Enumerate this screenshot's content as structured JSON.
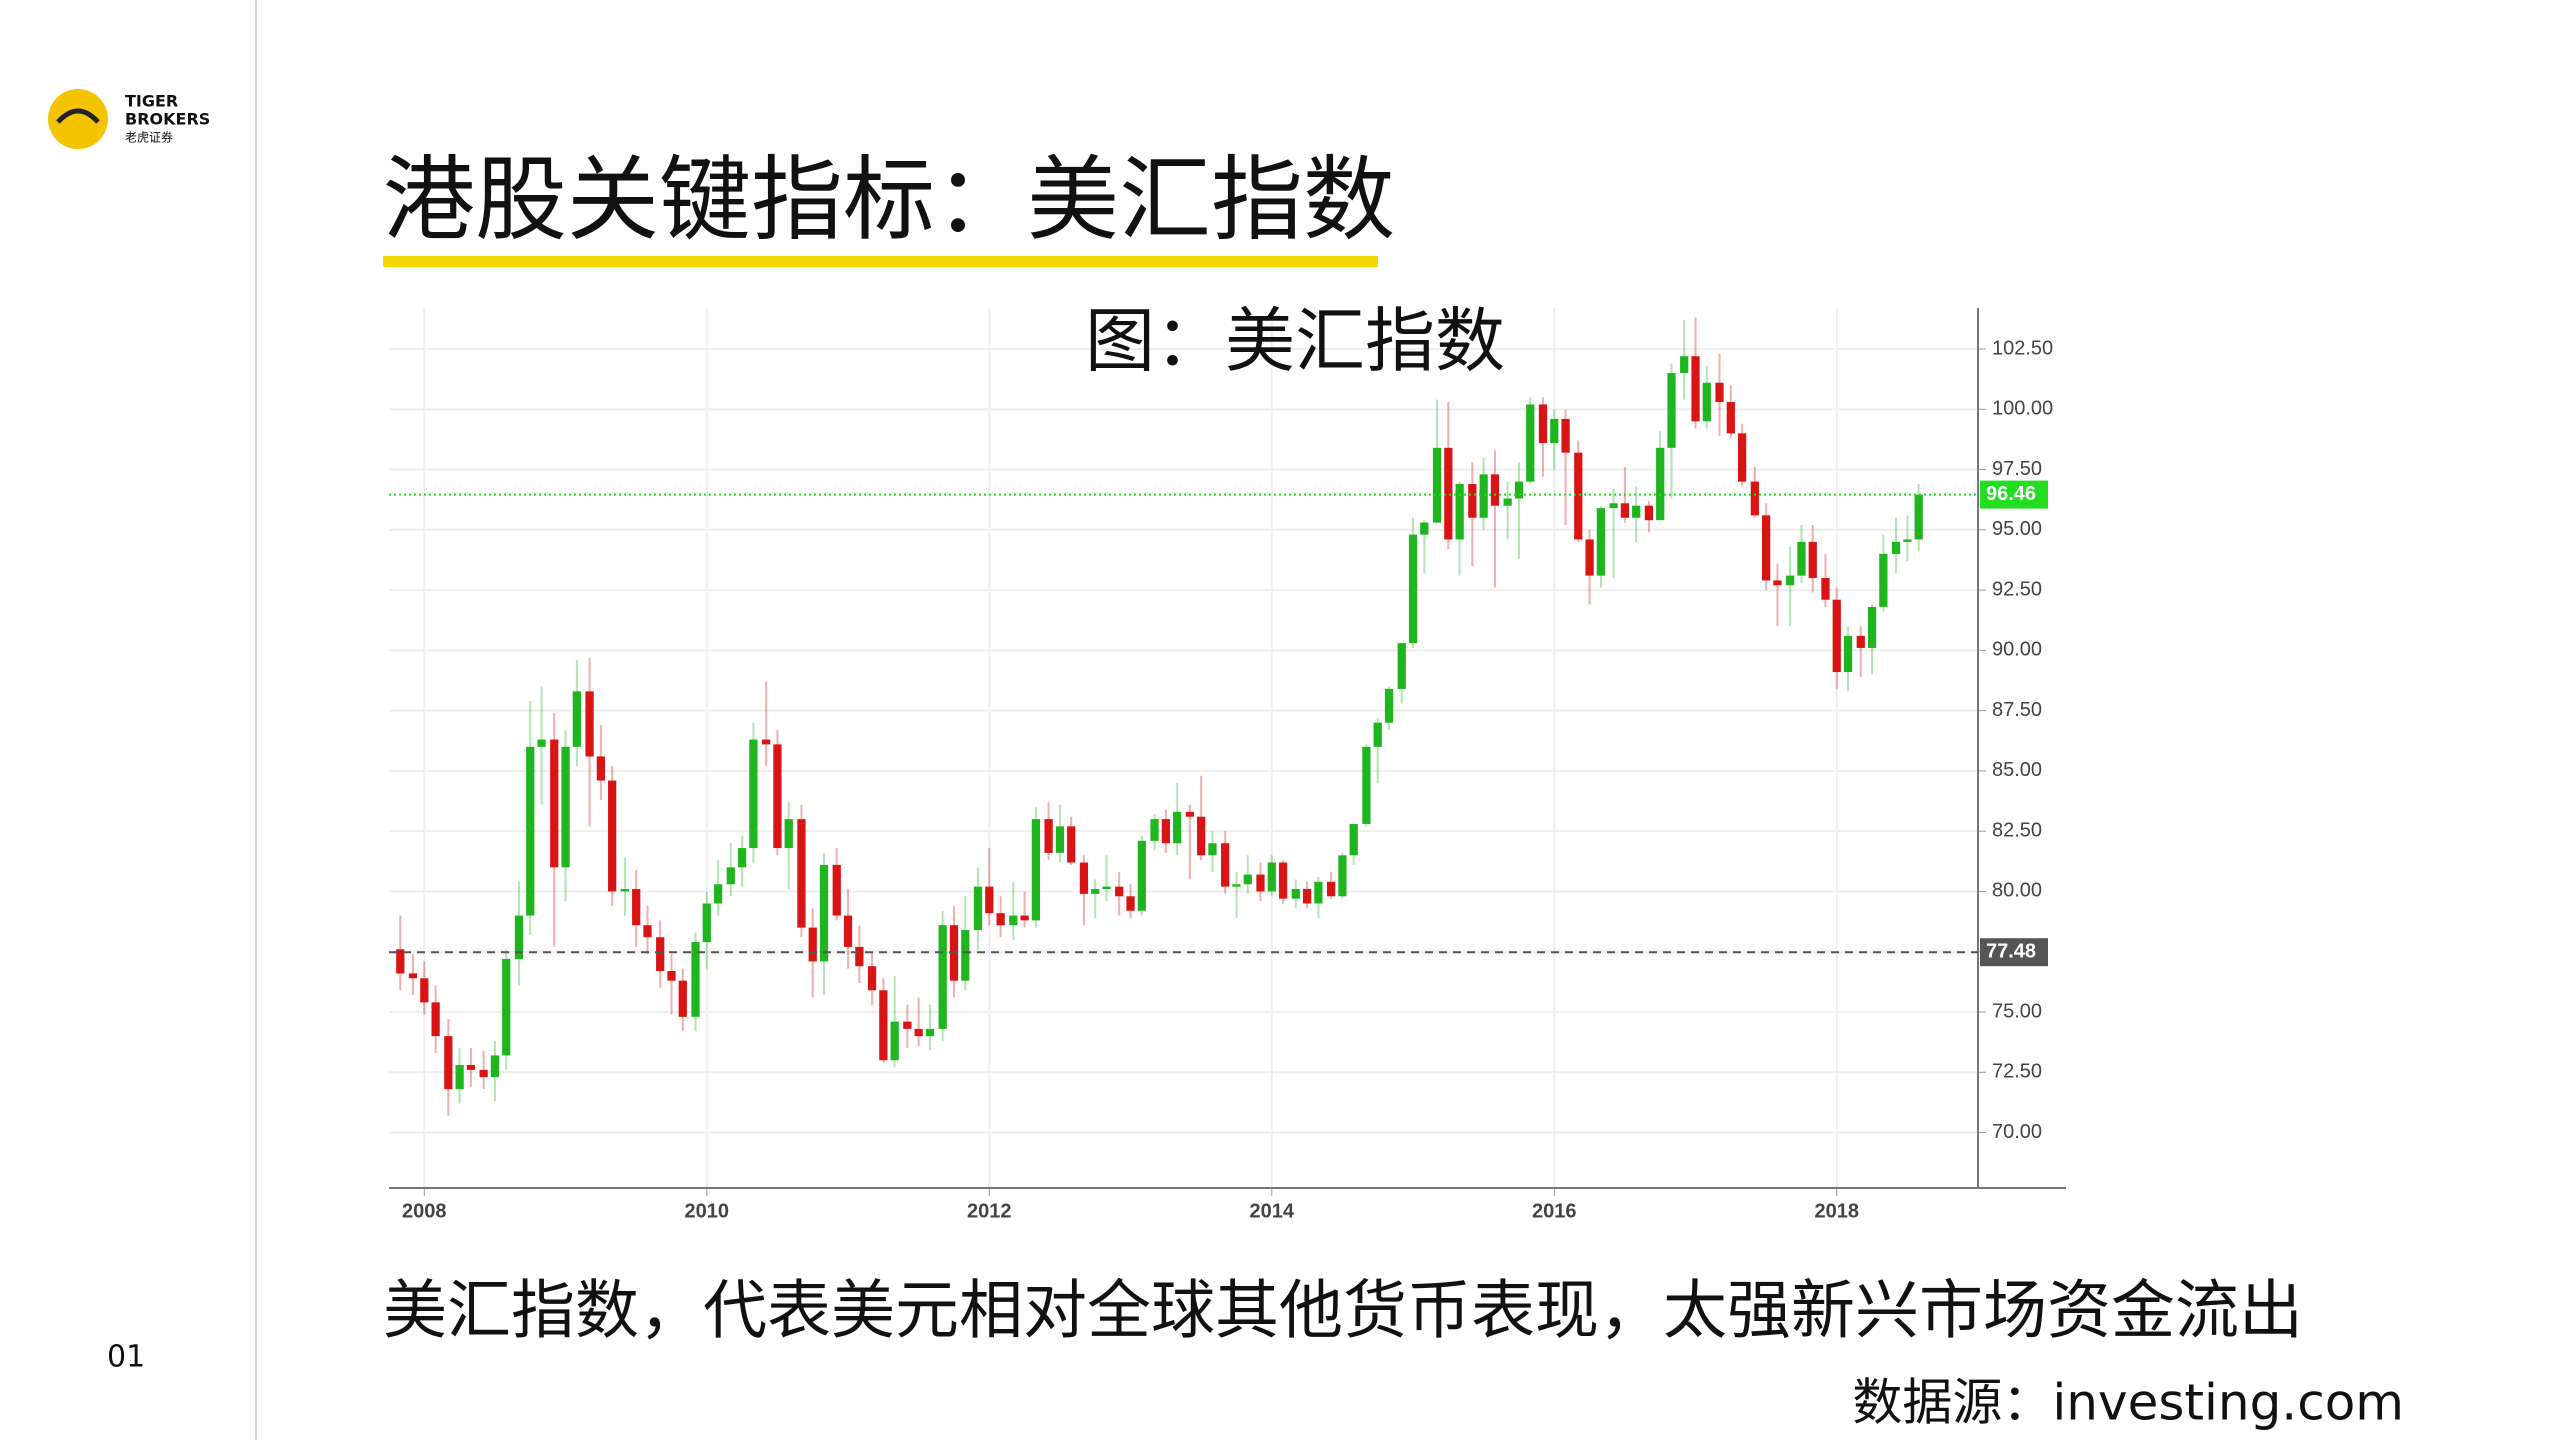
{
  "slide": {
    "logo": [
      "TIGER",
      "BROKERS",
      "老虎证券"
    ],
    "title": "港股关键指标：美汇指数",
    "caption": "美汇指数，代表美元相对全球其他货币表现，太强新兴市场资金流出",
    "source": "数据源：investing.com",
    "page": "01"
  },
  "chart_data": {
    "type": "candlestick",
    "title": "图：美汇指数",
    "up_color": "#1fb51f",
    "down_color": "#d91414",
    "grid": true,
    "xlim": [
      2007.75,
      2019.0
    ],
    "xticks": [
      2008,
      2010,
      2012,
      2014,
      2016,
      2018
    ],
    "ylim": [
      67.7,
      104.2
    ],
    "yticks": [
      {
        "value": 70,
        "label": "70.00"
      },
      {
        "value": 72.5,
        "label": "72.50"
      },
      {
        "value": 75,
        "label": "75.00"
      },
      {
        "value": 77.5,
        "label": "77.50"
      },
      {
        "value": 80,
        "label": "80.00"
      },
      {
        "value": 82.5,
        "label": "82.50"
      },
      {
        "value": 85,
        "label": "85.00"
      },
      {
        "value": 87.5,
        "label": "87.50"
      },
      {
        "value": 90,
        "label": "90.00"
      },
      {
        "value": 92.5,
        "label": "92.50"
      },
      {
        "value": 95,
        "label": "95.00"
      },
      {
        "value": 97.5,
        "label": "97.50"
      },
      {
        "value": 100,
        "label": "100.00"
      },
      {
        "value": 102.5,
        "label": "102.50"
      }
    ],
    "price_lines": [
      {
        "value": 96.46,
        "color": "#22dd22",
        "style": "dotted"
      },
      {
        "value": 77.48,
        "color": "#555555",
        "style": "dashed"
      }
    ],
    "x": [
      2007.83,
      2007.92,
      2008.0,
      2008.08,
      2008.17,
      2008.25,
      2008.33,
      2008.42,
      2008.5,
      2008.58,
      2008.67,
      2008.75,
      2008.83,
      2008.92,
      2009.0,
      2009.08,
      2009.17,
      2009.25,
      2009.33,
      2009.42,
      2009.5,
      2009.58,
      2009.67,
      2009.75,
      2009.83,
      2009.92,
      2010.0,
      2010.08,
      2010.17,
      2010.25,
      2010.33,
      2010.42,
      2010.5,
      2010.58,
      2010.67,
      2010.75,
      2010.83,
      2010.92,
      2011.0,
      2011.08,
      2011.17,
      2011.25,
      2011.33,
      2011.42,
      2011.5,
      2011.58,
      2011.67,
      2011.75,
      2011.83,
      2011.92,
      2012.0,
      2012.08,
      2012.17,
      2012.25,
      2012.33,
      2012.42,
      2012.5,
      2012.58,
      2012.67,
      2012.75,
      2012.83,
      2012.92,
      2013.0,
      2013.08,
      2013.17,
      2013.25,
      2013.33,
      2013.42,
      2013.5,
      2013.58,
      2013.67,
      2013.75,
      2013.83,
      2013.92,
      2014.0,
      2014.08,
      2014.17,
      2014.25,
      2014.33,
      2014.42,
      2014.5,
      2014.58,
      2014.67,
      2014.75,
      2014.83,
      2014.92,
      2015.0,
      2015.08,
      2015.17,
      2015.25,
      2015.33,
      2015.42,
      2015.5,
      2015.58,
      2015.67,
      2015.75,
      2015.83,
      2015.92,
      2016.0,
      2016.08,
      2016.17,
      2016.25,
      2016.33,
      2016.42,
      2016.5,
      2016.58,
      2016.67,
      2016.75,
      2016.83,
      2016.92,
      2017.0,
      2017.08,
      2017.17,
      2017.25,
      2017.33,
      2017.42,
      2017.5,
      2017.58,
      2017.67,
      2017.75,
      2017.83,
      2017.92,
      2018.0,
      2018.08,
      2018.17,
      2018.25,
      2018.33,
      2018.42,
      2018.5,
      2018.58
    ],
    "ohlc": [
      [
        77.6,
        79.0,
        75.9,
        76.6
      ],
      [
        76.6,
        77.4,
        75.7,
        76.4
      ],
      [
        76.4,
        77.1,
        74.9,
        75.4
      ],
      [
        75.4,
        76.1,
        73.3,
        74.0
      ],
      [
        74.0,
        74.7,
        70.7,
        71.8
      ],
      [
        71.8,
        73.5,
        71.2,
        72.8
      ],
      [
        72.8,
        73.5,
        71.9,
        72.6
      ],
      [
        72.6,
        73.4,
        71.8,
        72.3
      ],
      [
        72.3,
        73.8,
        71.3,
        73.2
      ],
      [
        73.2,
        77.6,
        72.6,
        77.2
      ],
      [
        77.2,
        80.4,
        76.1,
        79.0
      ],
      [
        79.0,
        87.9,
        78.2,
        86.0
      ],
      [
        86.0,
        88.5,
        83.6,
        86.3
      ],
      [
        86.3,
        87.4,
        77.7,
        81.0
      ],
      [
        81.0,
        86.7,
        79.6,
        86.0
      ],
      [
        86.0,
        89.6,
        85.2,
        88.3
      ],
      [
        88.3,
        89.7,
        82.7,
        85.6
      ],
      [
        85.6,
        86.9,
        83.8,
        84.6
      ],
      [
        84.6,
        85.2,
        79.4,
        80.0
      ],
      [
        80.0,
        81.4,
        79.0,
        80.1
      ],
      [
        80.1,
        80.9,
        77.7,
        78.6
      ],
      [
        78.6,
        79.4,
        77.4,
        78.1
      ],
      [
        78.1,
        78.8,
        76.0,
        76.7
      ],
      [
        76.7,
        77.4,
        74.9,
        76.3
      ],
      [
        76.3,
        76.8,
        74.2,
        74.8
      ],
      [
        74.8,
        78.3,
        74.2,
        77.9
      ],
      [
        77.9,
        80.0,
        76.8,
        79.5
      ],
      [
        79.5,
        81.3,
        79.0,
        80.3
      ],
      [
        80.3,
        82.0,
        79.8,
        81.0
      ],
      [
        81.0,
        82.3,
        80.2,
        81.8
      ],
      [
        81.8,
        87.0,
        81.2,
        86.3
      ],
      [
        86.3,
        88.7,
        85.2,
        86.1
      ],
      [
        86.1,
        86.7,
        81.5,
        81.8
      ],
      [
        81.8,
        83.7,
        80.1,
        83.0
      ],
      [
        83.0,
        83.6,
        78.1,
        78.5
      ],
      [
        78.5,
        79.3,
        75.6,
        77.1
      ],
      [
        77.1,
        81.6,
        75.7,
        81.1
      ],
      [
        81.1,
        81.8,
        78.8,
        79.0
      ],
      [
        79.0,
        80.1,
        76.8,
        77.7
      ],
      [
        77.7,
        78.6,
        76.2,
        76.9
      ],
      [
        76.9,
        77.5,
        75.3,
        75.9
      ],
      [
        75.9,
        76.4,
        72.9,
        73.0
      ],
      [
        73.0,
        76.5,
        72.7,
        74.6
      ],
      [
        74.6,
        75.3,
        73.5,
        74.3
      ],
      [
        74.3,
        75.6,
        73.6,
        74.0
      ],
      [
        74.0,
        75.3,
        73.4,
        74.3
      ],
      [
        74.3,
        79.2,
        73.8,
        78.6
      ],
      [
        78.6,
        79.4,
        75.6,
        76.3
      ],
      [
        76.3,
        79.8,
        75.9,
        78.4
      ],
      [
        78.4,
        81.0,
        77.6,
        80.2
      ],
      [
        80.2,
        81.8,
        78.6,
        79.1
      ],
      [
        79.1,
        79.8,
        78.1,
        78.6
      ],
      [
        78.6,
        80.4,
        78.0,
        79.0
      ],
      [
        79.0,
        80.0,
        78.5,
        78.8
      ],
      [
        78.8,
        83.5,
        78.5,
        83.0
      ],
      [
        83.0,
        83.7,
        81.3,
        81.6
      ],
      [
        81.6,
        83.6,
        81.2,
        82.7
      ],
      [
        82.7,
        83.1,
        81.1,
        81.2
      ],
      [
        81.2,
        81.5,
        78.6,
        79.9
      ],
      [
        79.9,
        80.5,
        78.9,
        80.1
      ],
      [
        80.1,
        81.5,
        79.6,
        80.2
      ],
      [
        80.2,
        80.8,
        79.0,
        79.8
      ],
      [
        79.8,
        80.3,
        78.9,
        79.2
      ],
      [
        79.2,
        82.3,
        79.0,
        82.1
      ],
      [
        82.1,
        83.2,
        81.7,
        83.0
      ],
      [
        83.0,
        83.4,
        81.6,
        82.0
      ],
      [
        82.0,
        84.5,
        81.5,
        83.3
      ],
      [
        83.3,
        83.6,
        80.5,
        83.1
      ],
      [
        83.1,
        84.8,
        81.3,
        81.5
      ],
      [
        81.5,
        82.5,
        80.8,
        82.0
      ],
      [
        82.0,
        82.5,
        79.9,
        80.2
      ],
      [
        80.2,
        80.8,
        78.9,
        80.3
      ],
      [
        80.3,
        81.5,
        79.9,
        80.7
      ],
      [
        80.7,
        81.2,
        79.6,
        80.0
      ],
      [
        80.0,
        81.5,
        79.8,
        81.2
      ],
      [
        81.2,
        81.3,
        79.5,
        79.7
      ],
      [
        79.7,
        80.5,
        79.3,
        80.1
      ],
      [
        80.1,
        80.4,
        79.3,
        79.5
      ],
      [
        79.5,
        80.6,
        78.9,
        80.4
      ],
      [
        80.4,
        80.8,
        79.7,
        79.8
      ],
      [
        79.8,
        81.6,
        79.7,
        81.5
      ],
      [
        81.5,
        82.8,
        81.1,
        82.8
      ],
      [
        82.8,
        86.1,
        82.7,
        86.0
      ],
      [
        86.0,
        87.2,
        84.5,
        87.0
      ],
      [
        87.0,
        88.5,
        86.7,
        88.4
      ],
      [
        88.4,
        90.3,
        87.8,
        90.3
      ],
      [
        90.3,
        95.5,
        90.1,
        94.8
      ],
      [
        94.8,
        95.4,
        93.2,
        95.3
      ],
      [
        95.3,
        100.4,
        95.3,
        98.4
      ],
      [
        98.4,
        100.3,
        94.2,
        94.6
      ],
      [
        94.6,
        97.0,
        93.1,
        96.9
      ],
      [
        96.9,
        97.8,
        93.5,
        95.5
      ],
      [
        95.5,
        98.0,
        95.0,
        97.3
      ],
      [
        97.3,
        98.3,
        92.6,
        96.0
      ],
      [
        96.0,
        97.0,
        94.6,
        96.3
      ],
      [
        96.3,
        97.8,
        93.8,
        97.0
      ],
      [
        97.0,
        100.5,
        96.9,
        100.2
      ],
      [
        100.2,
        100.5,
        97.2,
        98.6
      ],
      [
        98.6,
        100.0,
        97.5,
        99.6
      ],
      [
        99.6,
        100.0,
        95.2,
        98.2
      ],
      [
        98.2,
        98.7,
        94.5,
        94.6
      ],
      [
        94.6,
        95.0,
        91.9,
        93.1
      ],
      [
        93.1,
        96.0,
        92.6,
        95.9
      ],
      [
        95.9,
        96.7,
        93.0,
        96.1
      ],
      [
        96.1,
        97.6,
        95.3,
        95.5
      ],
      [
        95.5,
        96.8,
        94.5,
        96.0
      ],
      [
        96.0,
        96.2,
        94.9,
        95.4
      ],
      [
        95.4,
        99.1,
        95.4,
        98.4
      ],
      [
        98.4,
        101.9,
        96.3,
        101.5
      ],
      [
        101.5,
        103.7,
        100.4,
        102.2
      ],
      [
        102.2,
        103.8,
        99.2,
        99.5
      ],
      [
        99.5,
        101.8,
        99.2,
        101.1
      ],
      [
        101.1,
        102.3,
        98.9,
        100.3
      ],
      [
        100.3,
        101.0,
        98.8,
        99.0
      ],
      [
        99.0,
        99.4,
        96.8,
        97.0
      ],
      [
        97.0,
        97.6,
        95.5,
        95.6
      ],
      [
        95.6,
        96.1,
        92.5,
        92.9
      ],
      [
        92.9,
        93.6,
        91.0,
        92.7
      ],
      [
        92.7,
        94.3,
        91.0,
        93.1
      ],
      [
        93.1,
        95.2,
        92.8,
        94.5
      ],
      [
        94.5,
        95.2,
        92.4,
        93.0
      ],
      [
        93.0,
        94.0,
        91.8,
        92.1
      ],
      [
        92.1,
        92.6,
        88.4,
        89.1
      ],
      [
        89.1,
        91.0,
        88.3,
        90.6
      ],
      [
        90.6,
        91.0,
        88.9,
        90.1
      ],
      [
        90.1,
        91.9,
        89.0,
        91.8
      ],
      [
        91.8,
        94.8,
        91.6,
        94.0
      ],
      [
        94.0,
        95.5,
        93.2,
        94.5
      ],
      [
        94.5,
        95.6,
        93.7,
        94.6
      ],
      [
        94.6,
        96.9,
        94.1,
        96.46
      ]
    ]
  }
}
